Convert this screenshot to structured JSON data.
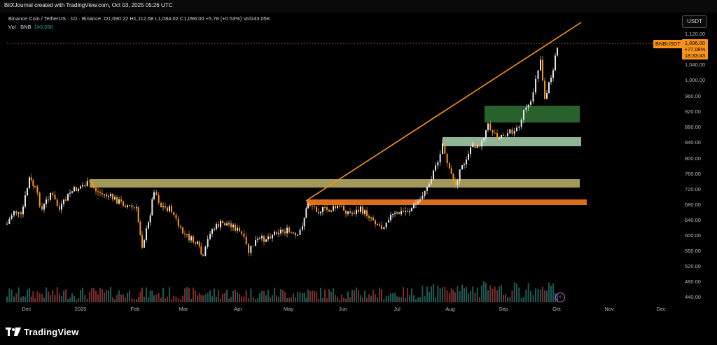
{
  "header": {
    "credit": "BitXJournal created with TradingView.com, Oct 03, 2025 05:26 UTC"
  },
  "legend": {
    "symbol_line": "Binance Coin / TetherUS · 1D · Binance",
    "open": "O1,090.22",
    "high": "H1,112.68",
    "low": "L1,084.02",
    "close": "C1,096.00",
    "change": "+5.78 (+0.53%)",
    "vol": "Vol143.05K",
    "vol_line_label": "Vol · BNB",
    "vol_line_value": "143.05K"
  },
  "price_scale": {
    "currency": "USDT",
    "ticks": [
      "1,120.00",
      "1,040.00",
      "1,000.00",
      "960.00",
      "920.00",
      "880.00",
      "840.00",
      "800.00",
      "760.00",
      "720.00",
      "680.00",
      "640.00",
      "600.00",
      "560.00",
      "520.00",
      "480.00",
      "440.00"
    ]
  },
  "time_scale": {
    "ticks": [
      "Dec",
      "2025",
      "Feb",
      "Mar",
      "Apr",
      "May",
      "Jun",
      "Jul",
      "Aug",
      "Sep",
      "Oct",
      "Nov",
      "Dec"
    ]
  },
  "last_price": {
    "symbol": "BNBUSDT",
    "price": "1,096.00",
    "change_pct": "+77.08%",
    "countdown": "18:33:43"
  },
  "colors": {
    "up": "#26a69a",
    "down": "#ef5350",
    "candle_body": "#e6e6e6",
    "trendline": "#f7931a",
    "zone_resistance_old": "#bdb36a",
    "zone_support_orange": "#e8741b",
    "zone_green_light": "#a9d5b0",
    "zone_green_dark": "#2e6b32"
  },
  "footer": {
    "brand": "TradingView"
  }
}
